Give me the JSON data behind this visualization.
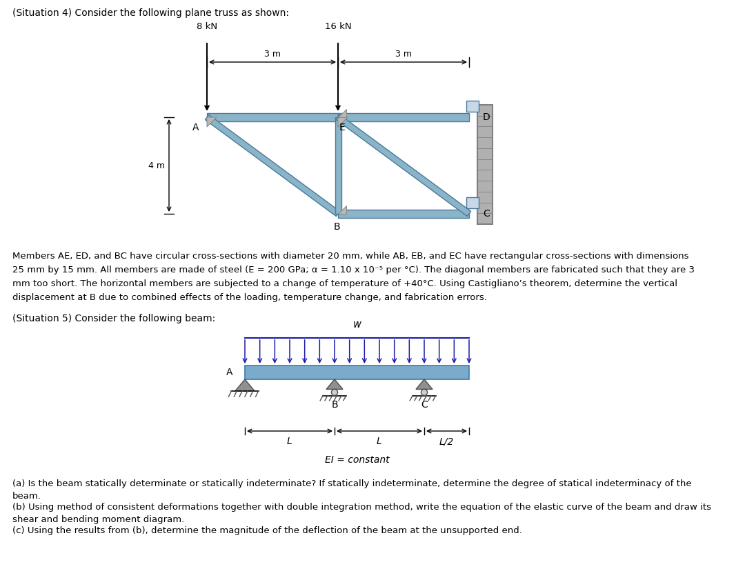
{
  "bg_color": "#ffffff",
  "title_sit4": "(Situation 4) Consider the following plane truss as shown:",
  "title_sit5": "(Situation 5) Consider the following beam:",
  "member_color": "#8ab4c8",
  "member_edge_color": "#4a7a9a",
  "wall_color": "#aaaaaa",
  "wall_hatch_color": "#888888",
  "text_sit4_para": "Members AE, ED, and BC have circular cross-sections with diameter 20 mm, while AB, EB, and EC have rectangular cross-sections with dimensions\n25 mm by 15 mm. All members are made of steel (E = 200 GPa; α = 1.10 x 10⁻⁵ per °C). The diagonal members are fabricated such that they are 3\nmm too short. The horizontal members are subjected to a change of temperature of +40°C. Using Castigliano’s theorem, determine the vertical\ndisplacement at B due to combined effects of the loading, temperature change, and fabrication errors.",
  "text_sit5_a": "(a) Is the beam statically determinate or statically indeterminate? If statically indeterminate, determine the degree of statical indeterminacy of the beam.",
  "text_sit5_b": "(b) Using method of consistent deformations together with double integration method, write the equation of the elastic curve of the beam and draw its shear and bending moment diagram.",
  "text_sit5_c": "(c) Using the results from (b), determine the magnitude of the deflection of the beam at the unsupported end.",
  "load_color": "#1a1aaa",
  "beam_color": "#7aabca",
  "beam_edge": "#3a7aaa"
}
